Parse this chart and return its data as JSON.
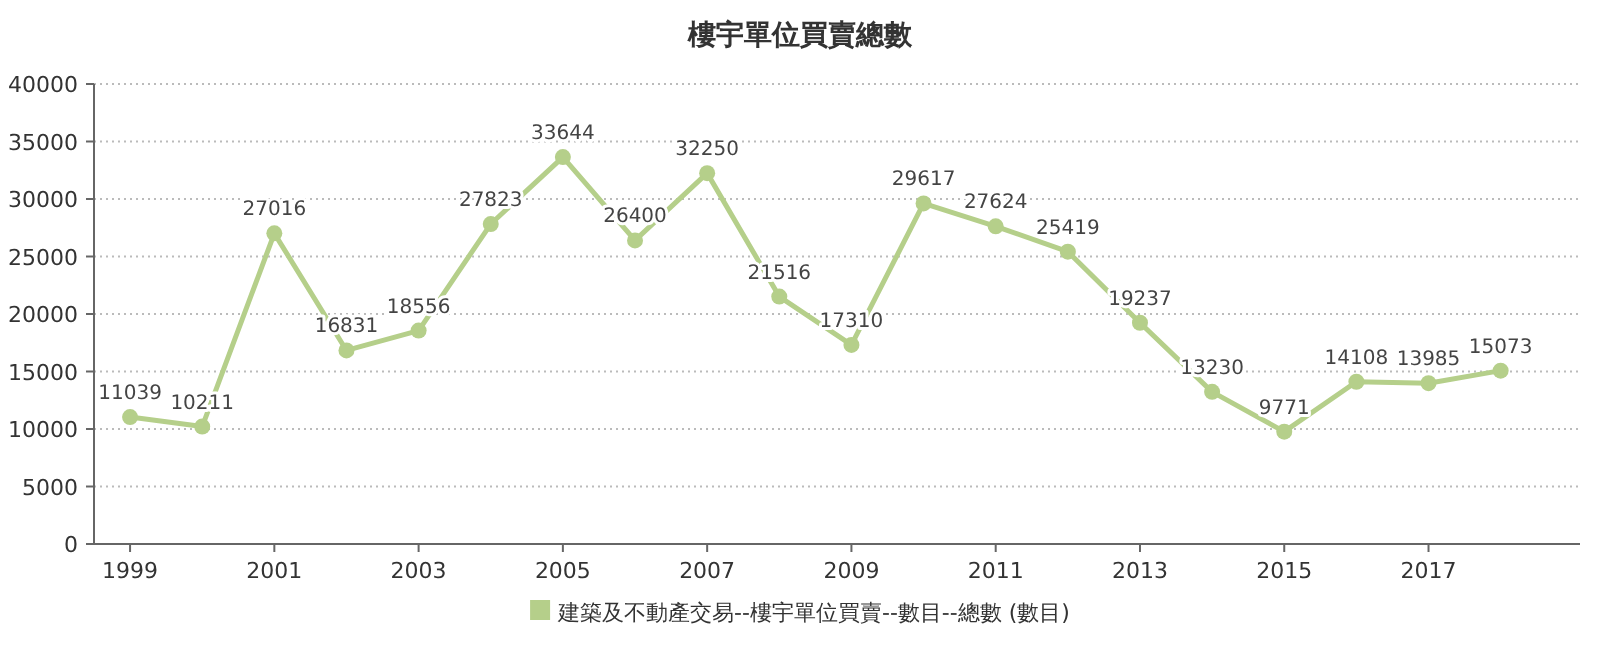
{
  "chart_data": {
    "type": "line",
    "title": "樓宇單位買賣總數",
    "x": [
      1999,
      2000,
      2001,
      2002,
      2003,
      2004,
      2005,
      2006,
      2007,
      2008,
      2009,
      2010,
      2011,
      2012,
      2013,
      2014,
      2015,
      2016,
      2017,
      2018
    ],
    "series": [
      {
        "name": "建築及不動產交易--樓宇單位買賣--數目--總數 (數目)",
        "color": "#b5cf8a",
        "values": [
          11039,
          10211,
          27016,
          16831,
          18556,
          27823,
          33644,
          26400,
          32250,
          21516,
          17310,
          29617,
          27624,
          25419,
          19237,
          13230,
          9771,
          14108,
          13985,
          15073
        ]
      }
    ],
    "xlim": [
      1998.5,
      2019.1
    ],
    "xticks": [
      1999,
      2001,
      2003,
      2005,
      2007,
      2009,
      2011,
      2013,
      2015,
      2017
    ],
    "ylim": [
      0,
      40000
    ],
    "yticks": [
      0,
      5000,
      10000,
      15000,
      20000,
      25000,
      30000,
      35000,
      40000
    ],
    "grid": "y",
    "legend": "bottom",
    "marker": "circle",
    "line_style": "solid",
    "data_labels": true
  }
}
